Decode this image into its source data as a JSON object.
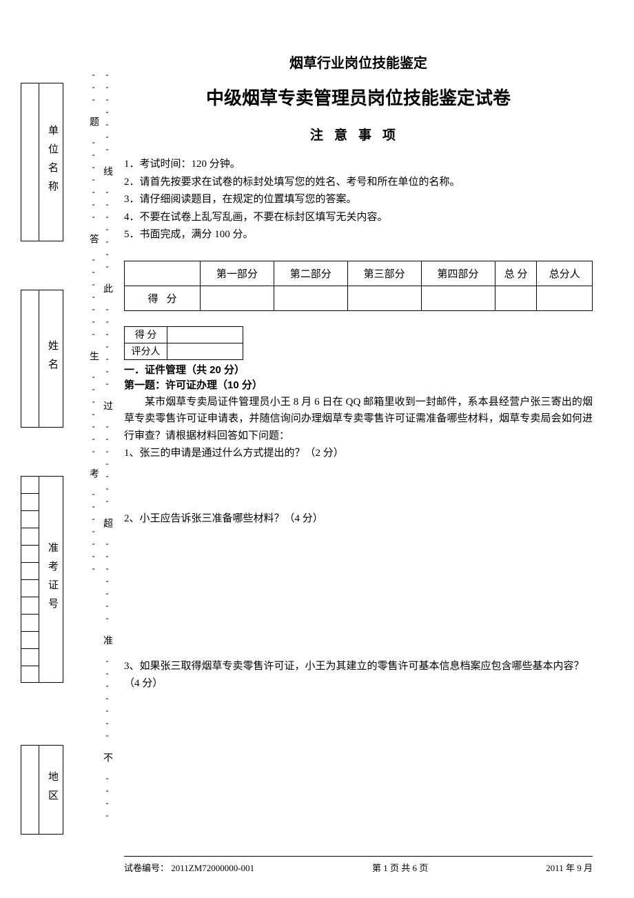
{
  "sidebar": {
    "fields": [
      "单位名称",
      "姓名",
      "准考证号",
      "地区"
    ]
  },
  "cutline": {
    "chars": [
      "考",
      "生",
      "答",
      "题",
      "不",
      "准",
      "超",
      "过",
      "此",
      "线"
    ],
    "dash_unit": "-------"
  },
  "header": {
    "supertitle": "烟草行业岗位技能鉴定",
    "title": "中级烟草专卖管理员岗位技能鉴定试卷",
    "notice_label": "注意事项"
  },
  "instructions": [
    "1．考试时间：120 分钟。",
    "2．请首先按要求在试卷的标封处填写您的姓名、考号和所在单位的名称。",
    "3．请仔细阅读题目，在规定的位置填写您的答案。",
    "4．不要在试卷上乱写乱画，不要在标封区填写无关内容。",
    "5．书面完成，满分 100 分。"
  ],
  "score_table": {
    "columns": [
      "第一部分",
      "第二部分",
      "第三部分",
      "第四部分",
      "总 分",
      "总分人"
    ],
    "row_label": "得分"
  },
  "mini_table": {
    "rows": [
      "得  分",
      "评分人"
    ]
  },
  "section1": {
    "heading": "一．证件管理（共 20 分）",
    "q1_title": "第一题：许可证办理（10 分）",
    "scenario": "某市烟草专卖局证件管理员小王 8 月 6 日在 QQ 邮箱里收到一封邮件，系本县经营户张三寄出的烟草专卖零售许可证申请表，并随信询问办理烟草专卖零售许可证需准备哪些材料，烟草专卖局会如何进行审查？请根据材料回答如下问题：",
    "sub_questions": [
      "1、张三的申请是通过什么方式提出的？（2 分）",
      "2、小王应告诉张三准备哪些材料？（4 分）",
      "3、如果张三取得烟草专卖零售许可证，小王为其建立的零售许可基本信息档案应包含哪些基本内容？（4 分）"
    ]
  },
  "footer": {
    "left": "试卷编号： 2011ZM72000000-001",
    "center": "第 1 页 共 6 页",
    "right": "2011 年 9 月"
  },
  "style": {
    "font_body": "SimSun",
    "font_heading": "SimHei",
    "text_color": "#000000",
    "bg_color": "#ffffff",
    "border_color": "#000000",
    "title_fontsize": 26,
    "body_fontsize": 15
  }
}
